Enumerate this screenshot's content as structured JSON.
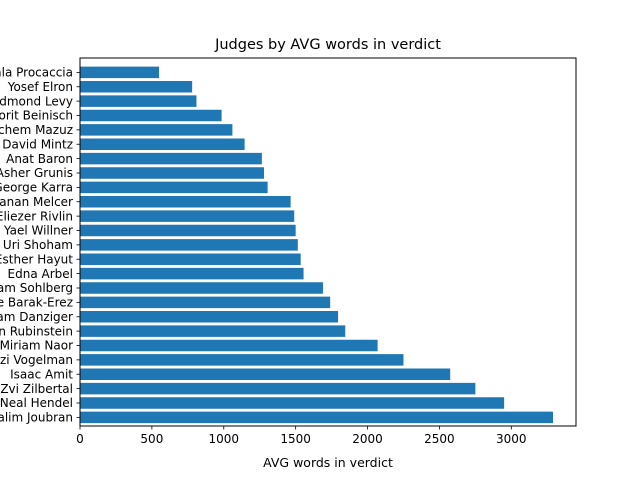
{
  "chart_data": {
    "type": "bar",
    "orientation": "horizontal",
    "title": "Judges by AVG words in verdict",
    "xlabel": "AVG words in verdict",
    "ylabel": "",
    "xlim": [
      0,
      3450
    ],
    "xticks": [
      0,
      500,
      1000,
      1500,
      2000,
      2500,
      3000
    ],
    "bar_color": "#1f77b4",
    "grid": false,
    "legend": "none",
    "categories": [
      "Salim Joubran",
      "Neal Hendel",
      "Zvi Zilbertal",
      "Isaac Amit",
      "Uzi Vogelman",
      "Miriam Naor",
      "Amnon Rubinstein",
      "Yoram Danziger",
      "Daphne Barak-Erez",
      "Noam Sohlberg",
      "Edna Arbel",
      "Esther Hayut",
      "Uri Shoham",
      "Yael Willner",
      "Eliezer Rivlin",
      "Hanan Melcer",
      "George Karra",
      "Asher Grunis",
      "Anat Baron",
      "David Mintz",
      "Menachem Mazuz",
      "Dorit Beinisch",
      "Edmond Levy",
      "Yosef Elron",
      "Ayala Procaccia"
    ],
    "values": [
      3290,
      2950,
      2750,
      2575,
      2250,
      2070,
      1845,
      1795,
      1740,
      1690,
      1555,
      1535,
      1515,
      1500,
      1490,
      1465,
      1305,
      1280,
      1265,
      1145,
      1060,
      985,
      810,
      780,
      550
    ]
  }
}
